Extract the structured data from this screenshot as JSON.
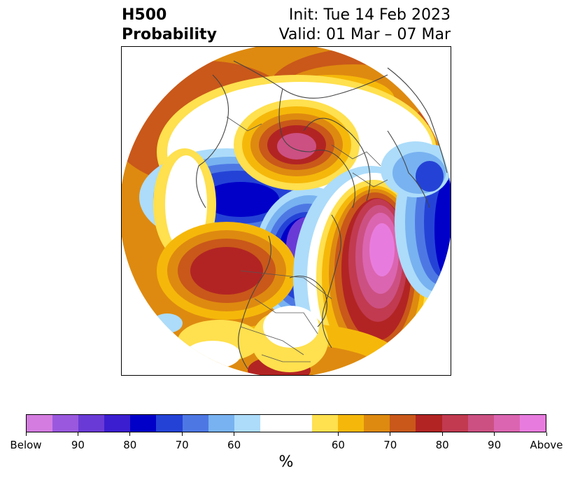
{
  "header": {
    "left_line1": "H500",
    "left_line2": "Probability",
    "right_line1": "Init: Tue 14 Feb 2023",
    "right_line2": "Valid: 01 Mar – 07 Mar"
  },
  "map": {
    "projection": "polar stereographic (Northern Hemisphere)",
    "features": [
      "coastlines",
      "country borders",
      "US state borders"
    ]
  },
  "colorbar": {
    "colors": [
      "#d47ce0",
      "#9a58de",
      "#6a3ad6",
      "#3b1ed0",
      "#0000c8",
      "#2443d6",
      "#4d78e4",
      "#78b2f0",
      "#acdcfa",
      "#ffffff",
      "#ffffff",
      "#ffe04e",
      "#f5b80a",
      "#de8a10",
      "#c9581a",
      "#b22424",
      "#c13a50",
      "#cc5082",
      "#db65b0",
      "#e87cde"
    ],
    "tick_labels": [
      "Below",
      "90",
      "80",
      "70",
      "60",
      "60",
      "70",
      "80",
      "90",
      "Above"
    ],
    "unit_label": "%"
  }
}
